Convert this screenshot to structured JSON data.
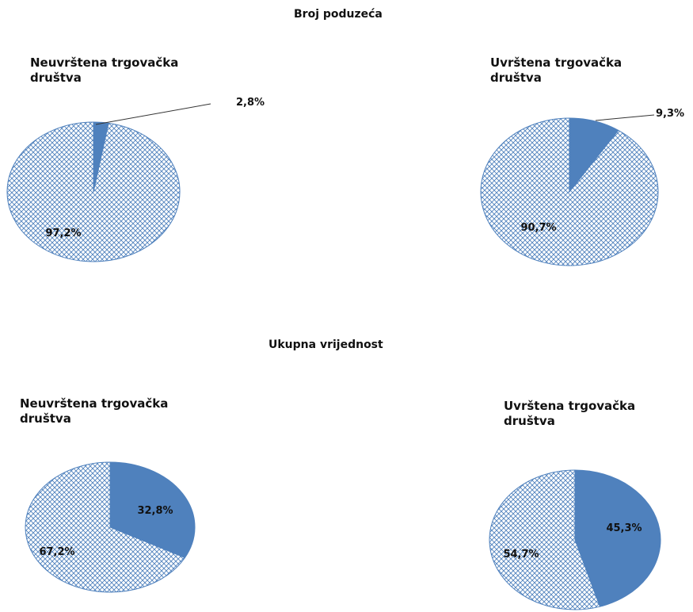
{
  "sections": [
    {
      "title": "Broj poduzeća"
    },
    {
      "title": "Ukupna vrijednost"
    }
  ],
  "colors": {
    "uvrstena": "#4f81bd",
    "neuvrstena_hatch": "#4f81bd",
    "outline": "#4f81bd",
    "leader": "#333333"
  },
  "chart_data": [
    {
      "type": "pie",
      "section": "Broj poduzeća",
      "title_line1": "Neuvrštena trgovačka",
      "title_line2": "društva",
      "slices": [
        {
          "value": 2.8,
          "label": "2,8%",
          "fill": "solid"
        },
        {
          "value": 97.2,
          "label": "97,2%",
          "fill": "hatch"
        }
      ]
    },
    {
      "type": "pie",
      "section": "Broj poduzeća",
      "title_line1": "Uvrštena trgovačka",
      "title_line2": "društva",
      "slices": [
        {
          "value": 9.3,
          "label": "9,3%",
          "fill": "solid"
        },
        {
          "value": 90.7,
          "label": "90,7%",
          "fill": "hatch"
        }
      ]
    },
    {
      "type": "pie",
      "section": "Ukupna vrijednost",
      "title_line1": "Neuvrštena trgovačka",
      "title_line2": "društva",
      "slices": [
        {
          "value": 32.8,
          "label": "32,8%",
          "fill": "solid"
        },
        {
          "value": 67.2,
          "label": "67,2%",
          "fill": "hatch"
        }
      ]
    },
    {
      "type": "pie",
      "section": "Ukupna vrijednost",
      "title_line1": "Uvrštena trgovačka",
      "title_line2": "društva",
      "slices": [
        {
          "value": 45.3,
          "label": "45,3%",
          "fill": "solid"
        },
        {
          "value": 54.7,
          "label": "54,7%",
          "fill": "hatch"
        }
      ]
    }
  ]
}
